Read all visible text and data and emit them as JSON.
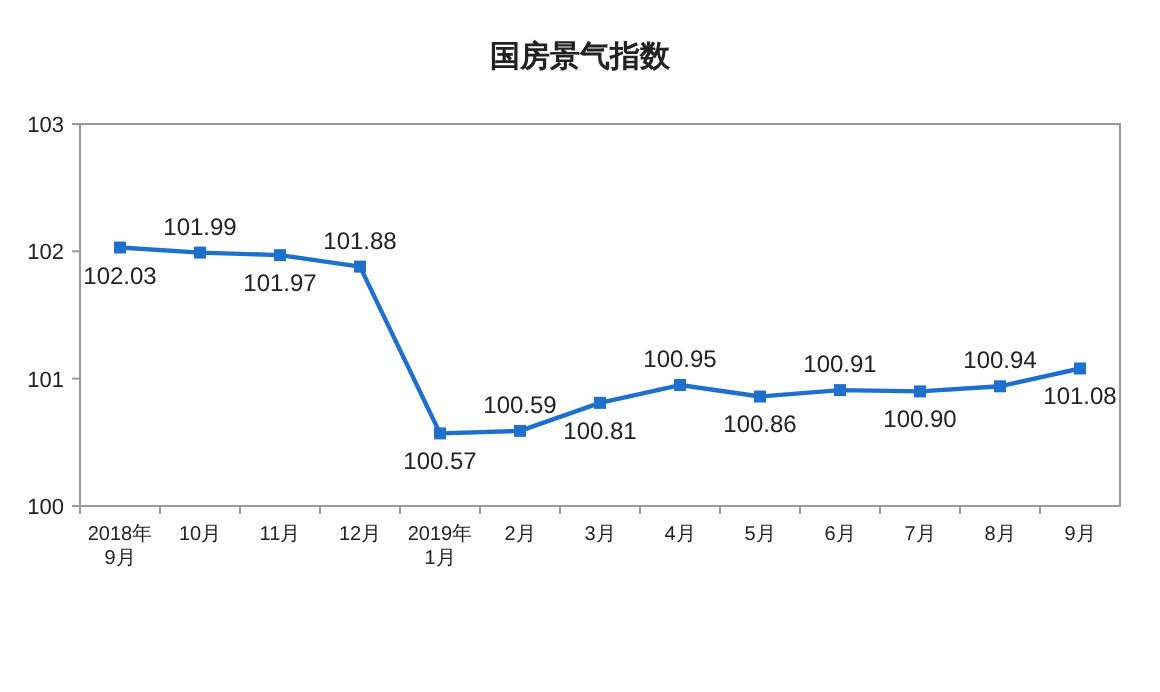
{
  "chart_data": {
    "type": "line",
    "title": "国房景气指数",
    "categories": [
      "2018年\n9月",
      "10月",
      "11月",
      "12月",
      "2019年\n1月",
      "2月",
      "3月",
      "4月",
      "5月",
      "6月",
      "7月",
      "8月",
      "9月"
    ],
    "series": [
      {
        "color": "#1f6fcc",
        "values": [
          102.03,
          101.99,
          101.97,
          101.88,
          100.57,
          100.59,
          100.81,
          100.95,
          100.86,
          100.91,
          100.9,
          100.94,
          101.08
        ],
        "value_labels": [
          "102.03",
          "101.99",
          "101.97",
          "101.88",
          "100.57",
          "100.59",
          "100.81",
          "100.95",
          "100.86",
          "100.91",
          "100.90",
          "100.94",
          "101.08"
        ]
      }
    ],
    "ylim": [
      100,
      103
    ],
    "yticks": [
      100,
      101,
      102,
      103
    ],
    "marker": "square",
    "line_style": "solid"
  }
}
